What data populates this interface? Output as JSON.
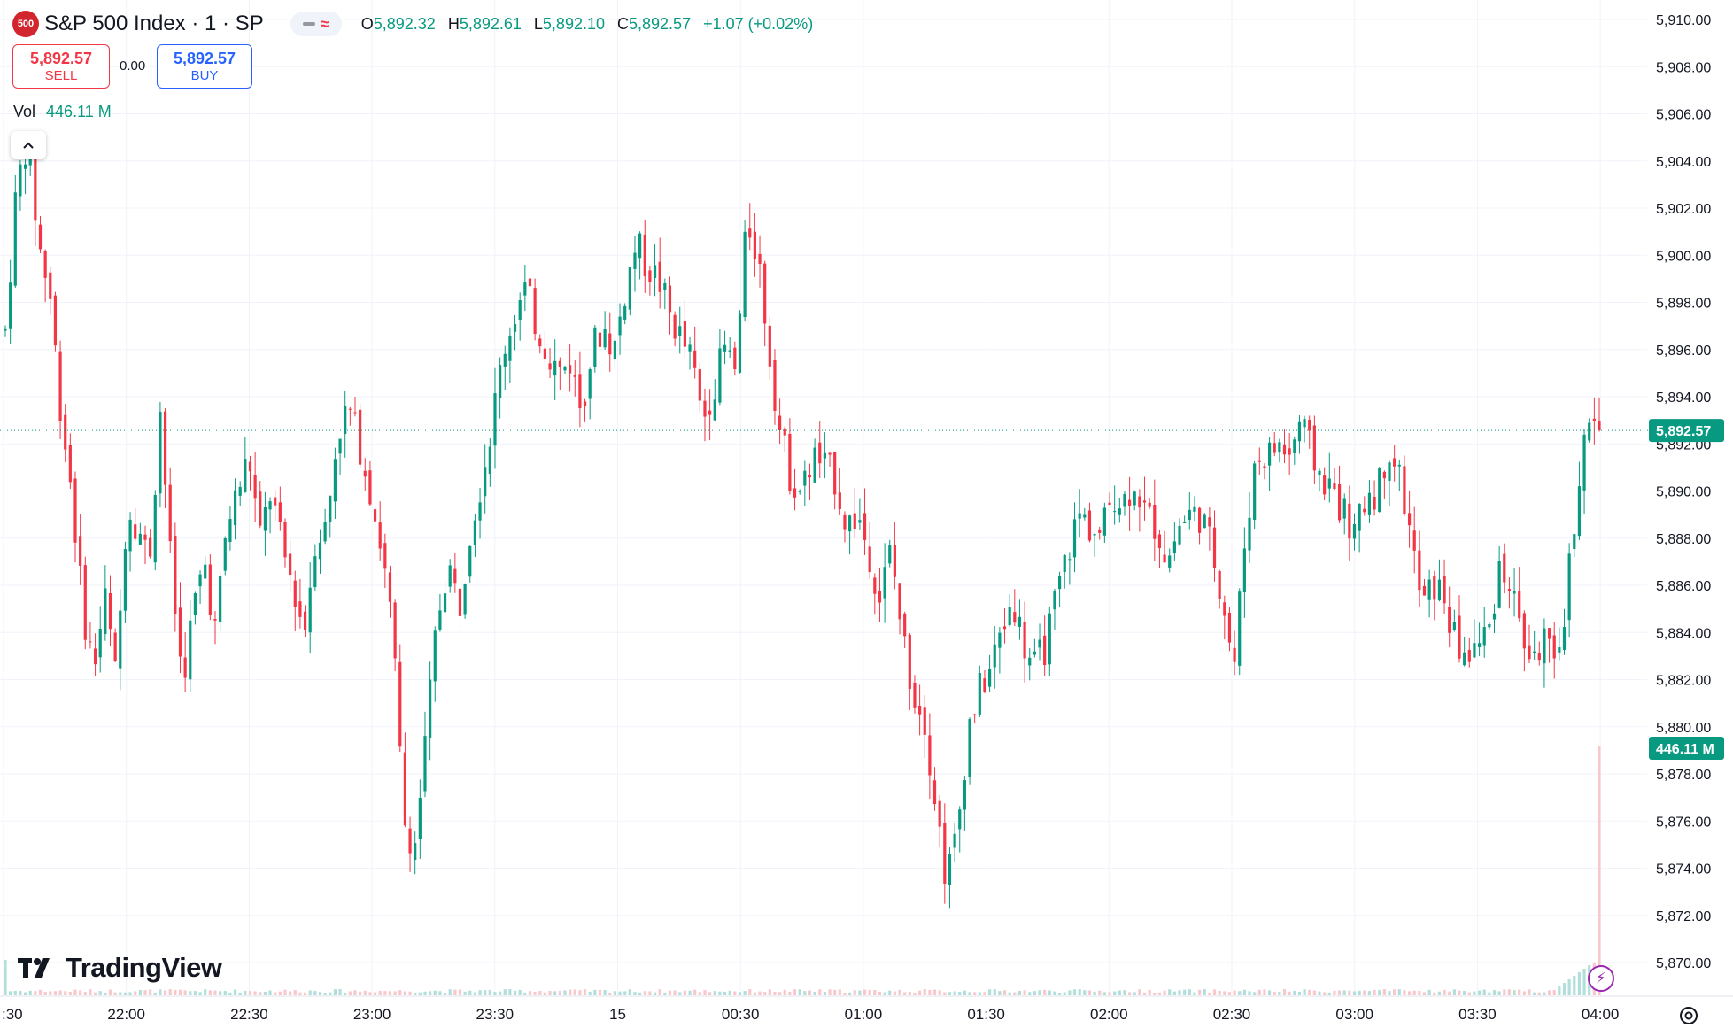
{
  "header": {
    "symbol_badge": "500",
    "title": "S&P 500 Index · 1 · SP",
    "ohlc": {
      "o_label": "O",
      "o": "5,892.32",
      "h_label": "H",
      "h": "5,892.61",
      "l_label": "L",
      "l": "5,892.10",
      "c_label": "C",
      "c": "5,892.57",
      "change": "+1.07 (+0.02%)"
    }
  },
  "trade": {
    "sell_price": "5,892.57",
    "sell_label": "SELL",
    "spread": "0.00",
    "buy_price": "5,892.57",
    "buy_label": "BUY"
  },
  "volume_legend": {
    "label": "Vol",
    "value": "446.11 M"
  },
  "brand": {
    "name": "TradingView"
  },
  "colors": {
    "up": "#089981",
    "down": "#f23645",
    "last_price": "#089981",
    "volume_up": "#b2dfdb",
    "volume_down": "#f7c9cd"
  },
  "icons": [
    "chevron-up-icon",
    "settings-icon",
    "lightning-icon",
    "tradingview-logo"
  ],
  "chart_data": {
    "type": "candlestick",
    "x_ticks": [
      ":30",
      "22:00",
      "22:30",
      "23:00",
      "23:30",
      "15",
      "00:30",
      "01:00",
      "01:30",
      "02:00",
      "02:30",
      "03:00",
      "03:30",
      "04:00"
    ],
    "y_ticks": [
      "5,910.00",
      "5,908.00",
      "5,906.00",
      "5,904.00",
      "5,902.00",
      "5,900.00",
      "5,898.00",
      "5,896.00",
      "5,894.00",
      "5,892.00",
      "5,890.00",
      "5,888.00",
      "5,886.00",
      "5,884.00",
      "5,882.00",
      "5,880.00",
      "5,878.00",
      "5,876.00",
      "5,874.00",
      "5,872.00",
      "5,870.00"
    ],
    "ylim": [
      5868.8,
      5910.4
    ],
    "last_price": 5892.57,
    "last_price_label": "5,892.57",
    "volume_label": "446.11 M",
    "close_path": [
      5896.8,
      5902.8,
      5905.0,
      5900.5,
      5898.5,
      5893.5,
      5890.0,
      5885.0,
      5882.5,
      5885.5,
      5882.0,
      5889.5,
      5888.5,
      5887.0,
      5893.5,
      5886.5,
      5882.0,
      5885.0,
      5887.0,
      5884.0,
      5888.5,
      5890.0,
      5891.5,
      5888.0,
      5890.0,
      5887.5,
      5886.0,
      5884.0,
      5888.0,
      5888.5,
      5892.5,
      5893.5,
      5892.0,
      5890.0,
      5887.5,
      5884.0,
      5876.0,
      5875.0,
      5879.5,
      5884.5,
      5887.0,
      5885.0,
      5888.5,
      5890.5,
      5893.0,
      5896.0,
      5897.5,
      5898.5,
      5897.0,
      5896.0,
      5895.0,
      5895.5,
      5893.5,
      5896.0,
      5897.0,
      5896.0,
      5898.5,
      5900.5,
      5899.5,
      5899.0,
      5897.5,
      5896.5,
      5895.5,
      5893.0,
      5894.5,
      5896.0,
      5895.0,
      5901.5,
      5900.0,
      5896.0,
      5892.5,
      5890.5,
      5890.0,
      5891.5,
      5891.0,
      5890.5,
      5888.5,
      5889.0,
      5887.5,
      5885.5,
      5887.5,
      5884.0,
      5881.5,
      5880.5,
      5877.0,
      5873.5,
      5875.5,
      5880.0,
      5881.5,
      5882.5,
      5884.0,
      5885.5,
      5883.5,
      5882.5,
      5883.5,
      5885.5,
      5887.5,
      5889.0,
      5888.5,
      5888.0,
      5890.0,
      5889.5,
      5890.5,
      5889.0,
      5888.5,
      5887.0,
      5888.5,
      5889.0,
      5889.0,
      5887.5,
      5885.5,
      5882.5,
      5888.0,
      5891.5,
      5891.5,
      5892.0,
      5891.5,
      5893.0,
      5891.5,
      5890.5,
      5890.0,
      5889.0,
      5888.0,
      5890.0,
      5890.0,
      5892.0,
      5890.5,
      5888.0,
      5885.0,
      5886.0,
      5885.5,
      5883.5,
      5883.0,
      5883.5,
      5884.0,
      5887.0,
      5886.0,
      5884.0,
      5882.5,
      5884.0,
      5882.0,
      5885.5,
      5890.0,
      5893.0,
      5892.57
    ],
    "volume_spike": 446.11
  }
}
